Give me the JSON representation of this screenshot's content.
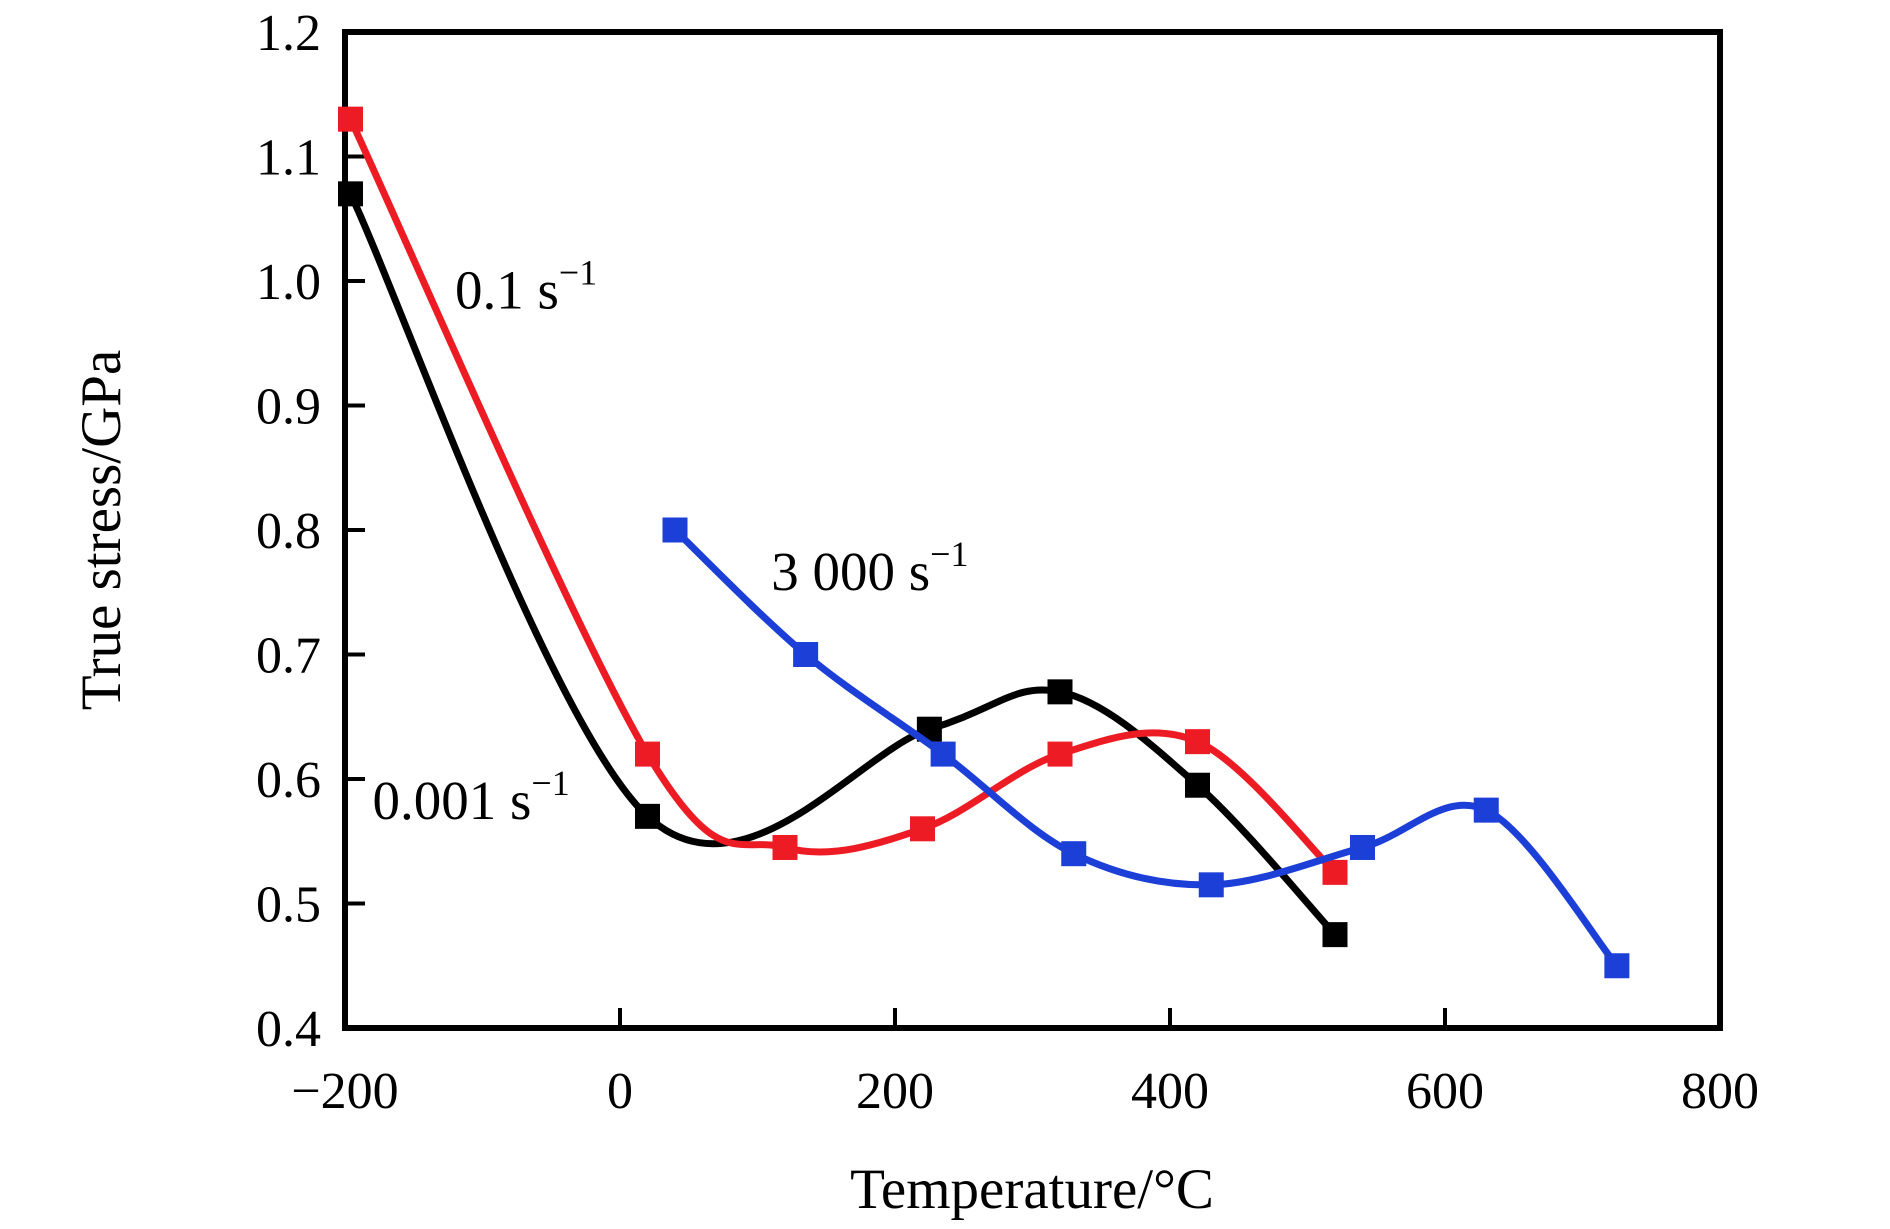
{
  "figure": {
    "background": "#ffffff",
    "frame_color": "#000000"
  },
  "chart_data": {
    "type": "line",
    "title": "",
    "xlabel": "Temperature/°C",
    "ylabel": "True stress/GPa",
    "xlim": [
      -200,
      800
    ],
    "ylim": [
      0.4,
      1.2
    ],
    "grid": false,
    "legend_position": "inline-annotations",
    "x_ticks": [
      {
        "value": -200,
        "label": "−200"
      },
      {
        "value": 0,
        "label": "0"
      },
      {
        "value": 200,
        "label": "200"
      },
      {
        "value": 400,
        "label": "400"
      },
      {
        "value": 600,
        "label": "600"
      },
      {
        "value": 800,
        "label": "800"
      }
    ],
    "y_ticks": [
      {
        "value": 0.4,
        "label": "0.4"
      },
      {
        "value": 0.5,
        "label": "0.5"
      },
      {
        "value": 0.6,
        "label": "0.6"
      },
      {
        "value": 0.7,
        "label": "0.7"
      },
      {
        "value": 0.8,
        "label": "0.8"
      },
      {
        "value": 0.9,
        "label": "0.9"
      },
      {
        "value": 1.0,
        "label": "1.0"
      },
      {
        "value": 1.1,
        "label": "1.1"
      },
      {
        "value": 1.2,
        "label": "1.2"
      }
    ],
    "series": [
      {
        "name": "0.001 s⁻¹",
        "strain_rate": "0.001 s⁻¹",
        "color": "#000000",
        "marker": "square",
        "points": [
          [
            -196,
            1.07
          ],
          [
            20,
            0.57
          ],
          [
            225,
            0.64
          ],
          [
            320,
            0.67
          ],
          [
            420,
            0.595
          ],
          [
            520,
            0.475
          ]
        ]
      },
      {
        "name": "0.1 s⁻¹",
        "strain_rate": "0.1 s⁻¹",
        "color": "#ED1C24",
        "marker": "square",
        "points": [
          [
            -196,
            1.13
          ],
          [
            20,
            0.62
          ],
          [
            120,
            0.545
          ],
          [
            220,
            0.56
          ],
          [
            320,
            0.62
          ],
          [
            420,
            0.63
          ],
          [
            520,
            0.525
          ]
        ]
      },
      {
        "name": "3 000 s⁻¹",
        "strain_rate": "3 000 s⁻¹",
        "color": "#1C3FD8",
        "marker": "square",
        "points": [
          [
            40,
            0.8
          ],
          [
            135,
            0.7
          ],
          [
            235,
            0.62
          ],
          [
            330,
            0.54
          ],
          [
            430,
            0.515
          ],
          [
            540,
            0.545
          ],
          [
            630,
            0.575
          ],
          [
            725,
            0.45
          ]
        ]
      }
    ],
    "annotations": [
      {
        "base": "0.1 s",
        "sup": "−1",
        "x": -120,
        "y": 0.978,
        "color": "#000000",
        "series": "0.1 s⁻¹"
      },
      {
        "base": "3 000 s",
        "sup": "−1",
        "x": 110,
        "y": 0.752,
        "color": "#000000",
        "series": "3 000 s⁻¹"
      },
      {
        "base": "0.001 s",
        "sup": "−1",
        "x": -180,
        "y": 0.568,
        "color": "#000000",
        "series": "0.001 s⁻¹"
      }
    ]
  }
}
